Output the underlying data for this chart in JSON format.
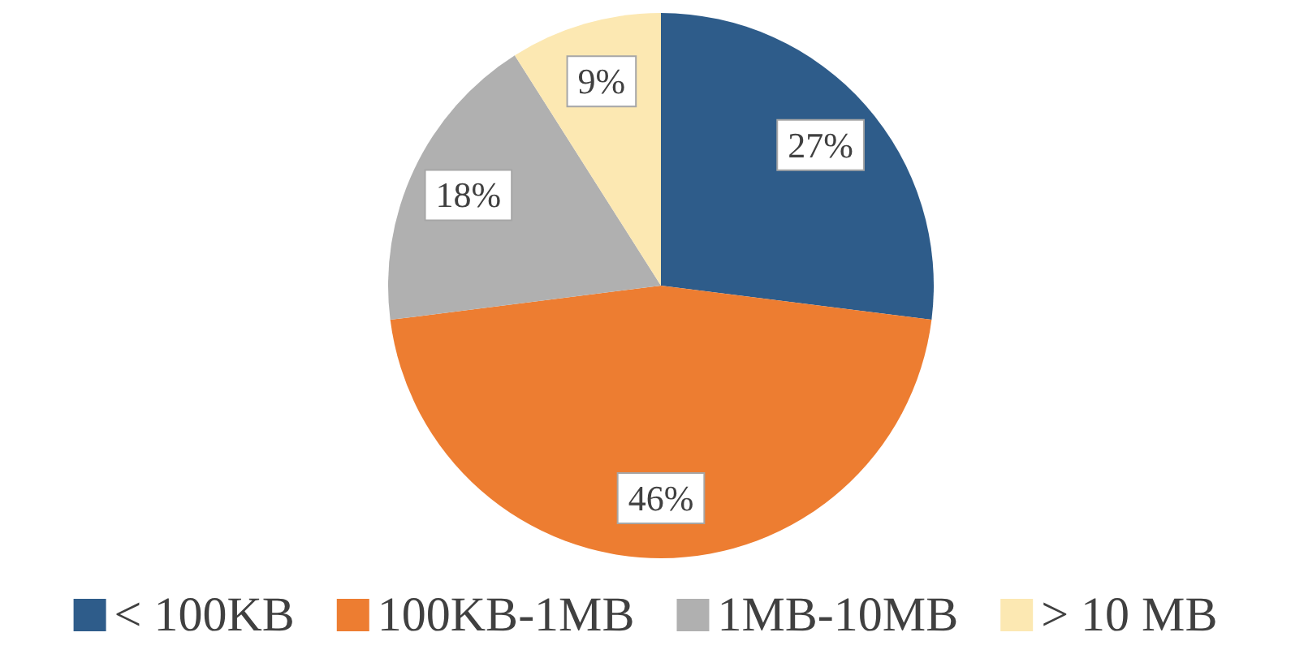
{
  "chart_data": {
    "type": "pie",
    "categories": [
      "< 100KB",
      "100KB-1MB",
      "1MB-10MB",
      "> 10 MB"
    ],
    "values": [
      27,
      46,
      18,
      9
    ],
    "value_labels": [
      "27%",
      "46%",
      "18%",
      "9%"
    ],
    "colors": [
      "#2e5c8a",
      "#ed7d31",
      "#b0b0b0",
      "#fce8b2"
    ],
    "legend": "bottom"
  }
}
